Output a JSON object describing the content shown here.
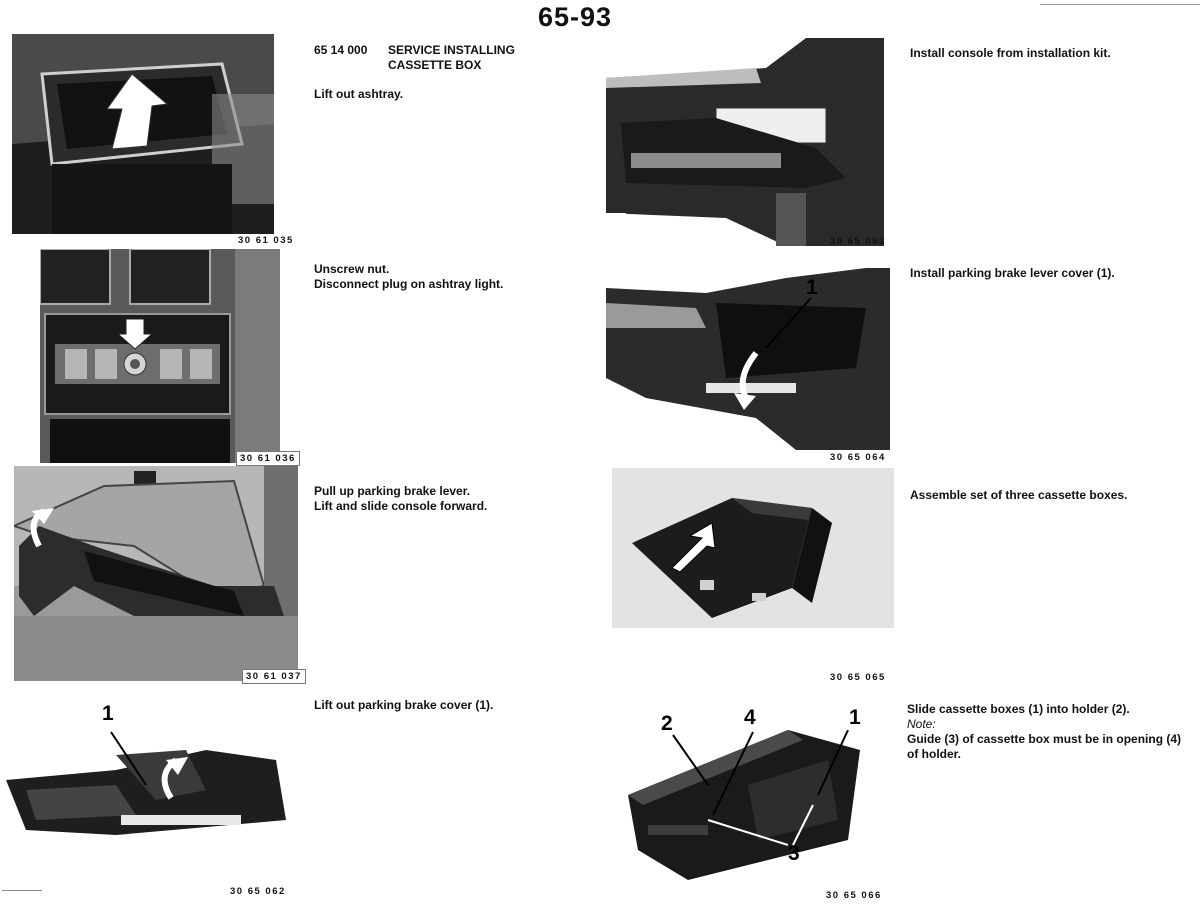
{
  "page_number": "65-93",
  "left_column": [
    {
      "heading_number": "65 14 000",
      "heading_title_1": "SERVICE INSTALLING",
      "heading_title_2": "CASSETTE BOX",
      "lines": [
        "Lift out ashtray."
      ],
      "photo_code": "30 61 035"
    },
    {
      "lines": [
        "Unscrew nut.",
        "Disconnect plug on ashtray light."
      ],
      "photo_code": "30 61 036"
    },
    {
      "lines": [
        "Pull up parking brake lever.",
        "Lift and slide console forward."
      ],
      "photo_code": "30 61 037"
    },
    {
      "lines": [
        "Lift out parking brake cover (1)."
      ],
      "photo_code": "30 65 062",
      "callouts": [
        "1"
      ]
    }
  ],
  "right_column": [
    {
      "lines": [
        "Install console from installation kit."
      ],
      "photo_code": "30 65 063"
    },
    {
      "lines": [
        "Install parking brake lever cover (1)."
      ],
      "photo_code": "30 65 064",
      "callouts": [
        "1"
      ]
    },
    {
      "lines": [
        "Assemble set of three cassette boxes."
      ],
      "photo_code": "30 65 065"
    },
    {
      "lines": [
        "Slide cassette boxes (1) into holder (2).",
        "Note:",
        "Guide (3) of cassette box must be in opening (4)",
        "of holder."
      ],
      "photo_code": "30 65 066",
      "callouts": [
        "2",
        "4",
        "1",
        "3"
      ]
    }
  ]
}
